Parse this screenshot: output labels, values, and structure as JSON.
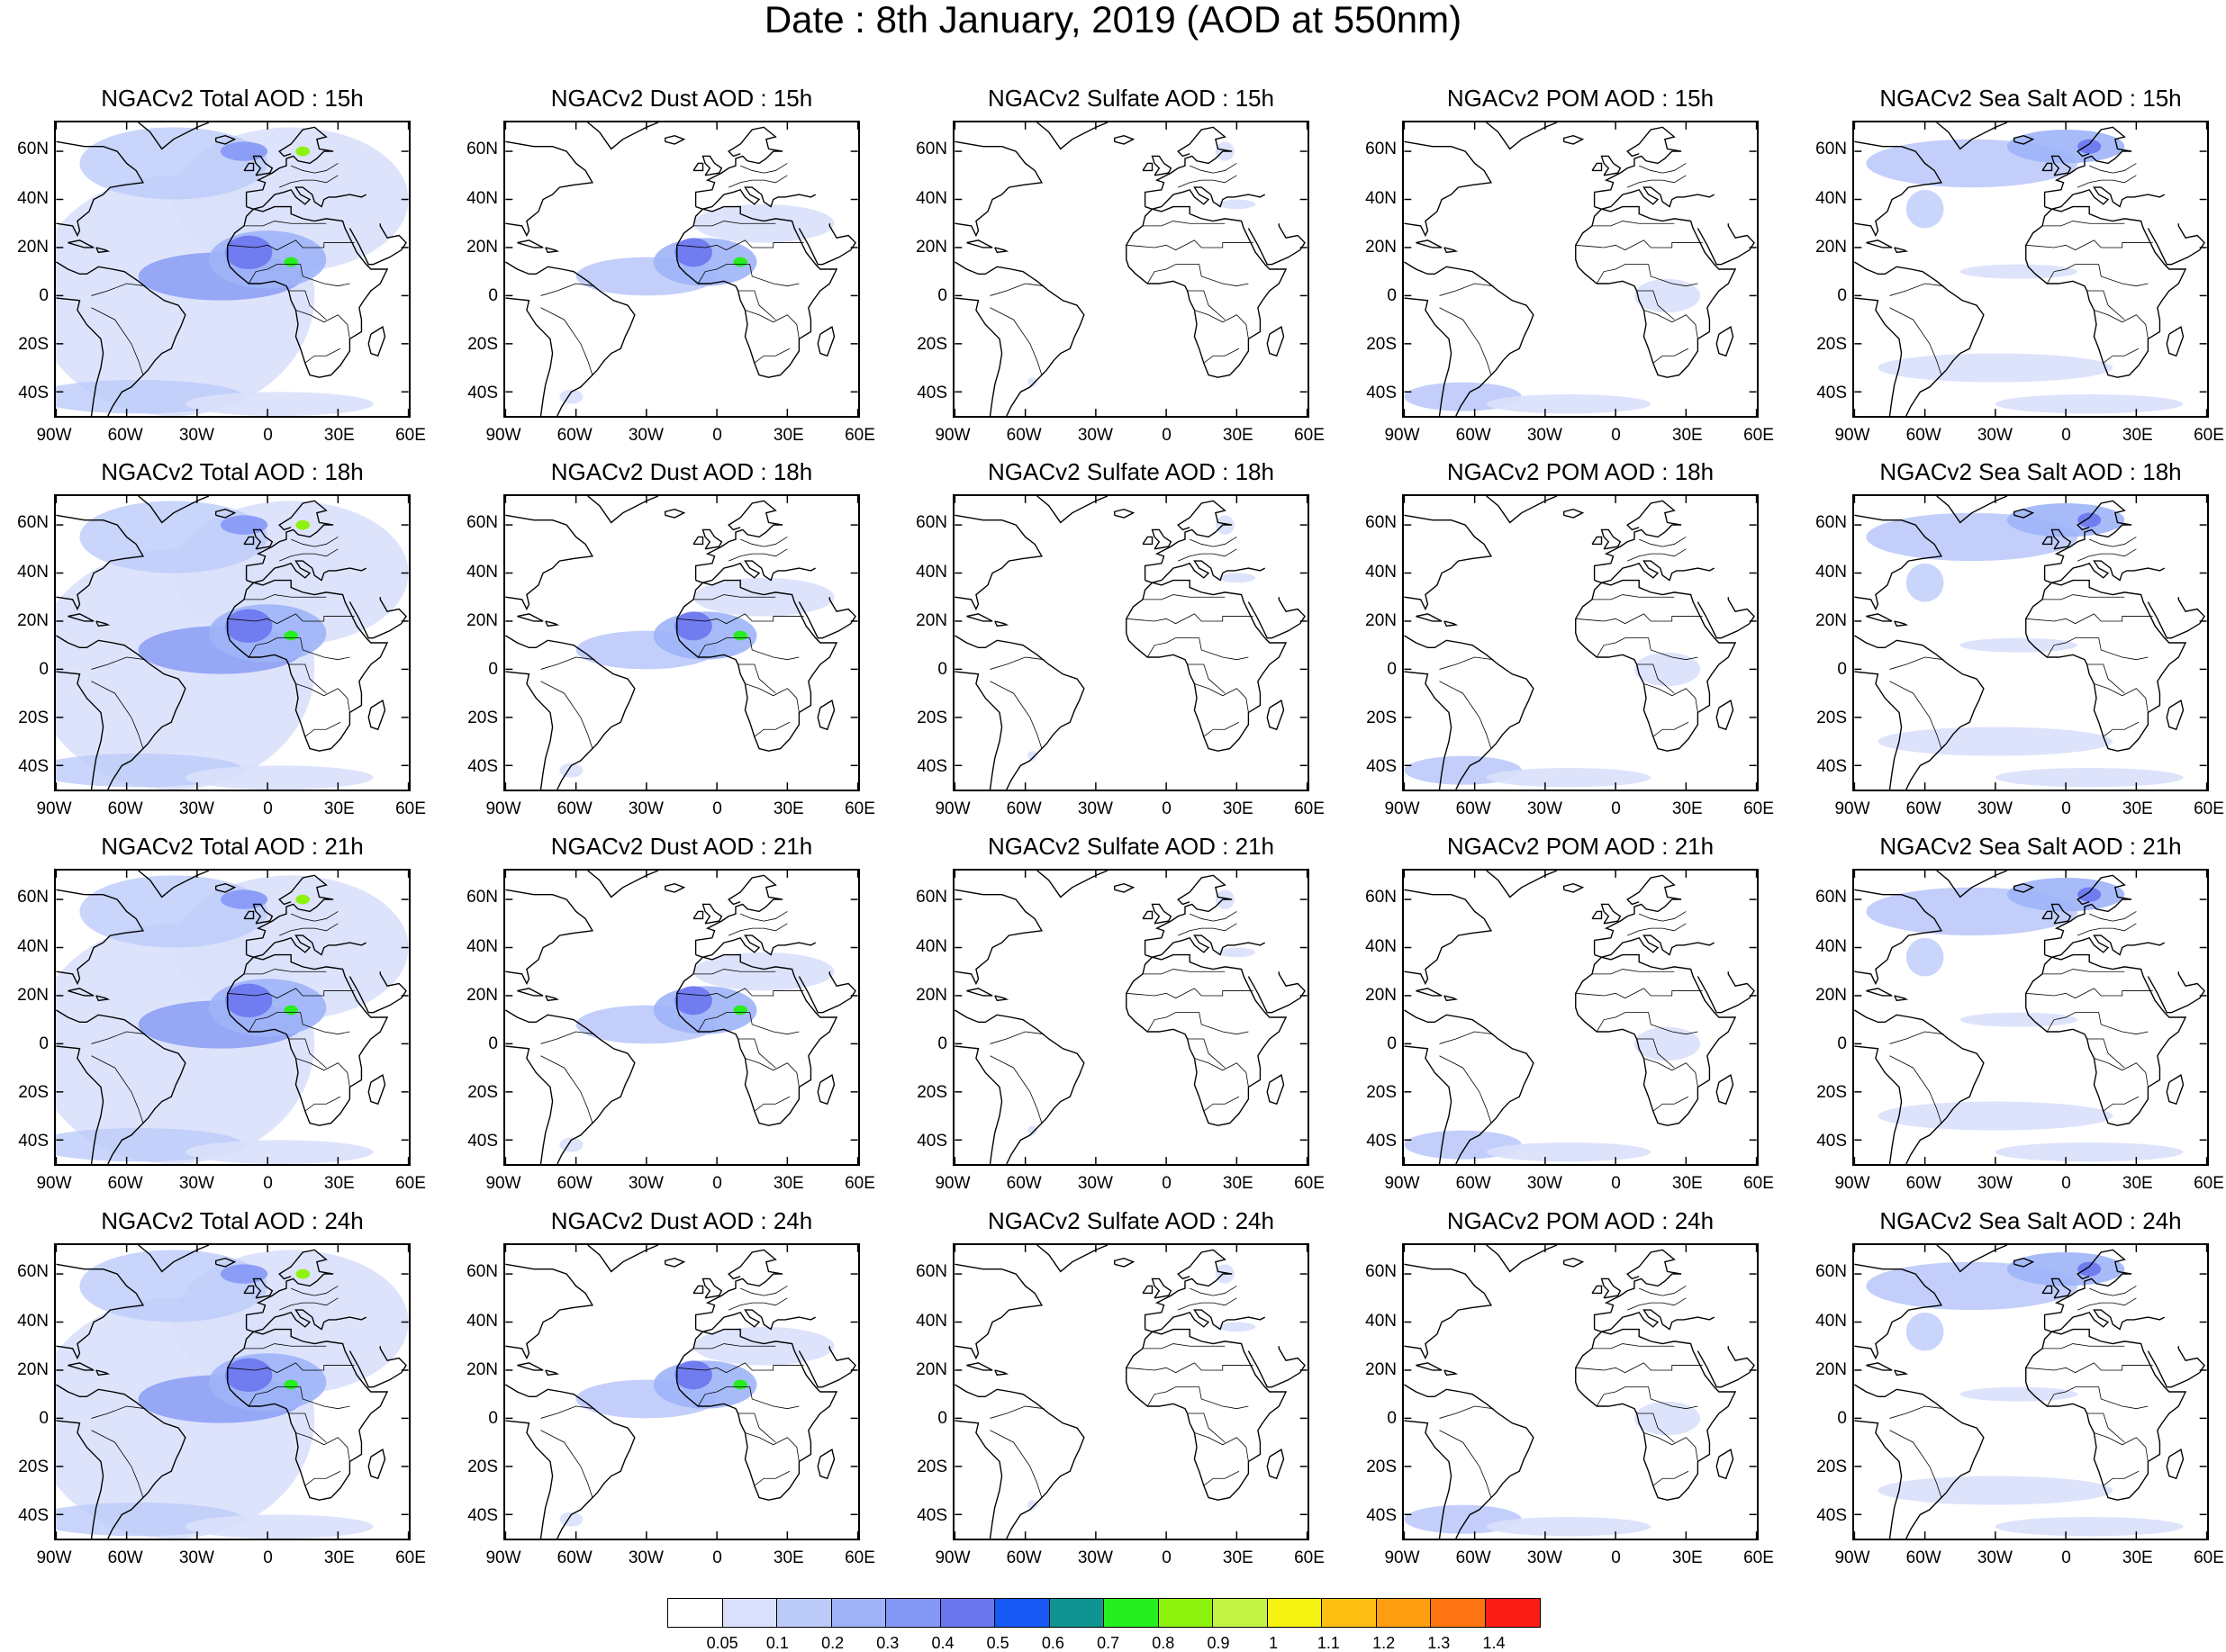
{
  "title": "Date : 8th January, 2019 (AOD at 550nm)",
  "panels": [
    [
      "NGACv2 Total AOD : 15h",
      "NGACv2 Dust AOD : 15h",
      "NGACv2 Sulfate AOD : 15h",
      "NGACv2 POM AOD : 15h",
      "NGACv2 Sea Salt AOD : 15h"
    ],
    [
      "NGACv2 Total AOD : 18h",
      "NGACv2 Dust AOD : 18h",
      "NGACv2 Sulfate AOD : 18h",
      "NGACv2 POM AOD : 18h",
      "NGACv2 Sea Salt AOD : 18h"
    ],
    [
      "NGACv2 Total AOD : 21h",
      "NGACv2 Dust AOD : 21h",
      "NGACv2 Sulfate AOD : 21h",
      "NGACv2 POM AOD : 21h",
      "NGACv2 Sea Salt AOD : 21h"
    ],
    [
      "NGACv2 Total AOD : 24h",
      "NGACv2 Dust AOD : 24h",
      "NGACv2 Sulfate AOD : 24h",
      "NGACv2 POM AOD : 24h",
      "NGACv2 Sea Salt  AOD : 24h"
    ]
  ],
  "lat_ticks": [
    "60N",
    "40N",
    "20N",
    "0",
    "20S",
    "40S"
  ],
  "lon_ticks": [
    "90W",
    "60W",
    "30W",
    "0",
    "30E",
    "60E"
  ],
  "colorbar": {
    "levels": [
      "0.05",
      "0.1",
      "0.2",
      "0.3",
      "0.4",
      "0.5",
      "0.6",
      "0.7",
      "0.8",
      "0.9",
      "1",
      "1.1",
      "1.2",
      "1.3",
      "1.4"
    ],
    "colors": [
      "#ffffff",
      "#d9e0fb",
      "#bccafa",
      "#9fb4f8",
      "#8597f5",
      "#6a76ee",
      "#1659f4",
      "#109491",
      "#26ee1f",
      "#8ef20f",
      "#c4f244",
      "#f6f312",
      "#fdbf12",
      "#fe9f12",
      "#fe7413",
      "#fd1d17"
    ]
  }
}
